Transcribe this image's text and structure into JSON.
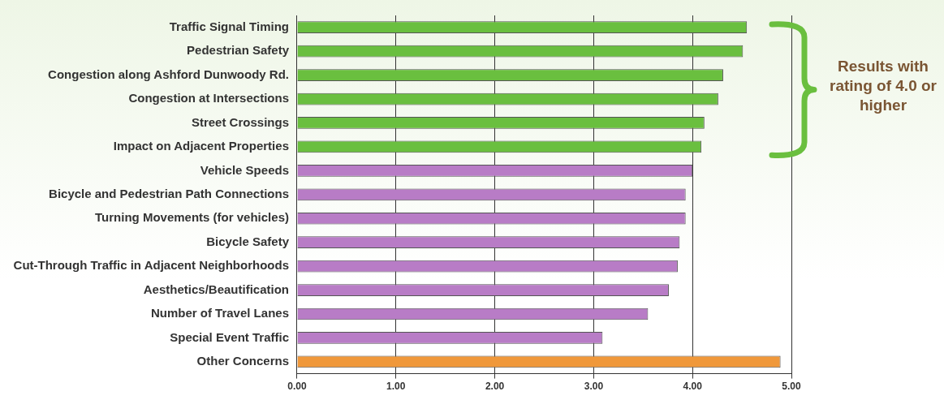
{
  "chart_data": {
    "type": "bar",
    "orientation": "horizontal",
    "categories": [
      "Traffic Signal Timing",
      "Pedestrian Safety",
      "Congestion along Ashford Dunwoody Rd.",
      "Congestion at Intersections",
      "Street Crossings",
      "Impact on Adjacent Properties",
      "Vehicle Speeds",
      "Bicycle and Pedestrian Path Connections",
      "Turning Movements (for vehicles)",
      "Bicycle Safety",
      "Cut-Through Traffic in Adjacent Neighborhoods",
      "Aesthetics/Beautification",
      "Number of Travel Lanes",
      "Special Event Traffic",
      "Other Concerns"
    ],
    "values": [
      4.55,
      4.51,
      4.31,
      4.26,
      4.12,
      4.09,
      4.0,
      3.93,
      3.93,
      3.87,
      3.85,
      3.76,
      3.55,
      3.09,
      4.89
    ],
    "colors": [
      "#6abf3f",
      "#6abf3f",
      "#6abf3f",
      "#6abf3f",
      "#6abf3f",
      "#6abf3f",
      "#b87cc6",
      "#b87cc6",
      "#b87cc6",
      "#b87cc6",
      "#b87cc6",
      "#b87cc6",
      "#b87cc6",
      "#b87cc6",
      "#f0983a"
    ],
    "xlim": [
      0,
      5
    ],
    "xticks": [
      {
        "value": 0,
        "label": "0.00"
      },
      {
        "value": 1,
        "label": "1.00"
      },
      {
        "value": 2,
        "label": "2.00"
      },
      {
        "value": 3,
        "label": "3.00"
      },
      {
        "value": 4,
        "label": "4.00"
      },
      {
        "value": 5,
        "label": "5.00"
      }
    ],
    "grid": "x",
    "legend": false,
    "annotations": [
      "Results with rating of 4.0 or higher"
    ]
  }
}
